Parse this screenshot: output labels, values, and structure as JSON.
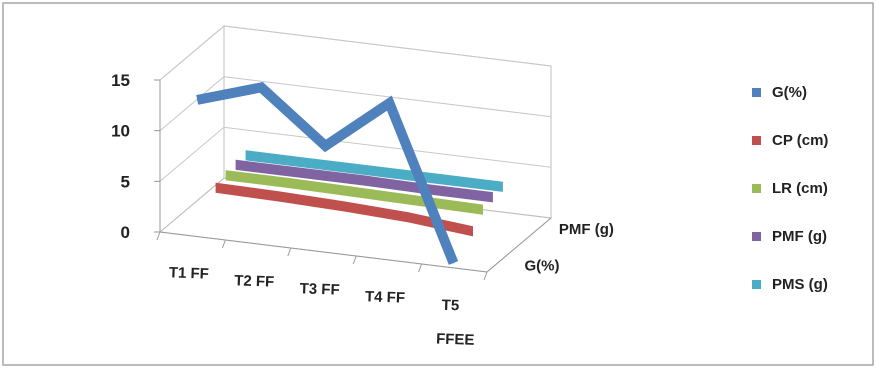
{
  "chart_data": {
    "type": "line",
    "style": "3d-ribbon",
    "categories": [
      "T1 FF",
      "T2 FF",
      "T3 FF",
      "T4 FF",
      "T5 FFEE"
    ],
    "y_ticks": [
      "0",
      "5",
      "10",
      "15"
    ],
    "ylim": [
      0,
      15
    ],
    "grid": true,
    "legend_position": "right",
    "depth_axis_labels": [
      "G(%)",
      "PMF (g)"
    ],
    "series": [
      {
        "name": "G(%)",
        "color": "#4F81BD",
        "values": [
          13,
          15,
          10,
          15,
          0
        ]
      },
      {
        "name": "CP (cm)",
        "color": "#C0504D",
        "values": [
          3.2,
          3.1,
          2.9,
          2.6,
          2.0
        ]
      },
      {
        "name": "LR (cm)",
        "color": "#9BBB59",
        "values": [
          3.6,
          3.6,
          3.5,
          3.4,
          3.3
        ]
      },
      {
        "name": "PMF (g)",
        "color": "#8064A2",
        "values": [
          3.8,
          3.8,
          3.8,
          3.7,
          3.7
        ]
      },
      {
        "name": "PMS (g)",
        "color": "#4BACC6",
        "values": [
          3.9,
          3.9,
          3.9,
          3.9,
          3.9
        ]
      }
    ]
  }
}
